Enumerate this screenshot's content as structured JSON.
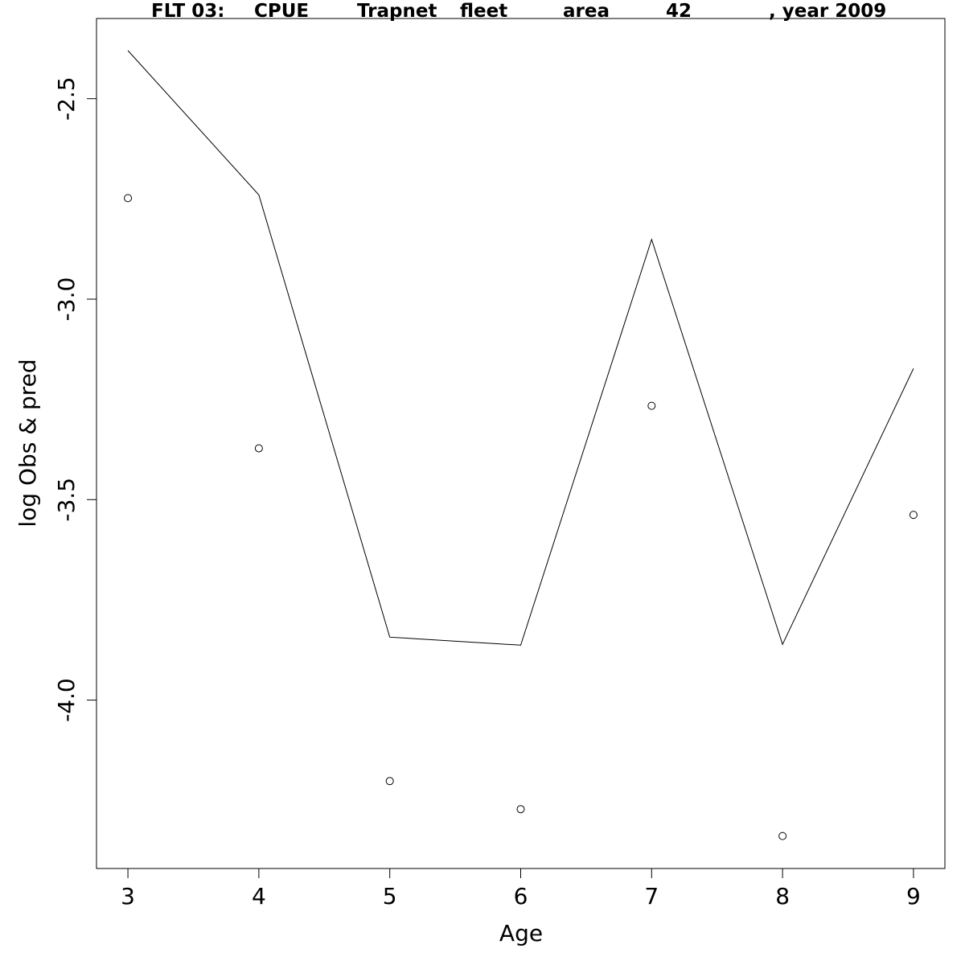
{
  "chart_data": {
    "type": "line",
    "title_parts": [
      "FLT 03:",
      "CPUE",
      "Trapnet",
      "fleet",
      "area",
      "42",
      ", year 2009"
    ],
    "xlabel": "Age",
    "ylabel": "log Obs & pred",
    "x": [
      3,
      4,
      5,
      6,
      7,
      8,
      9
    ],
    "x_ticks": [
      "3",
      "4",
      "5",
      "6",
      "7",
      "8",
      "9"
    ],
    "y_ticks": [
      "-2.5",
      "-3.0",
      "-3.5",
      "-4.0"
    ],
    "y_tick_values": [
      -2.5,
      -3.0,
      -3.5,
      -4.0
    ],
    "xlim": [
      2.76,
      9.24
    ],
    "ylim": [
      -4.42,
      -2.3
    ],
    "grid": false,
    "series": [
      {
        "style": "line",
        "values": [
          -2.38,
          -2.74,
          -3.843,
          -3.863,
          -2.851,
          -3.861,
          -3.173
        ]
      },
      {
        "style": "points",
        "values": [
          -2.748,
          -3.372,
          -4.202,
          -4.272,
          -3.266,
          -4.339,
          -3.538
        ]
      }
    ]
  }
}
